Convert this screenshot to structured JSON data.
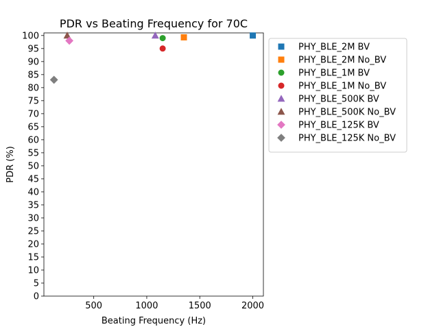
{
  "chart_data": {
    "type": "scatter",
    "title": "PDR vs Beating Frequency for 70C",
    "xlabel": "Beating Frequency (Hz)",
    "ylabel": "PDR (%)",
    "xlim": [
      30,
      2100
    ],
    "ylim": [
      0,
      101
    ],
    "xticks": [
      500,
      1000,
      1500,
      2000
    ],
    "yticks": [
      0,
      5,
      10,
      15,
      20,
      25,
      30,
      35,
      40,
      45,
      50,
      55,
      60,
      65,
      70,
      75,
      80,
      85,
      90,
      95,
      100
    ],
    "grid": false,
    "legend_position": "outside-right",
    "series": [
      {
        "name": "PHY_BLE_2M BV",
        "marker": "square",
        "color": "#1f77b4",
        "points": [
          {
            "x": 2000,
            "y": 100
          }
        ]
      },
      {
        "name": "PHY_BLE_2M No_BV",
        "marker": "square",
        "color": "#ff7f0e",
        "points": [
          {
            "x": 1350,
            "y": 99.3
          }
        ]
      },
      {
        "name": "PHY_BLE_1M BV",
        "marker": "circle",
        "color": "#2ca02c",
        "points": [
          {
            "x": 1150,
            "y": 99
          }
        ]
      },
      {
        "name": "PHY_BLE_1M No_BV",
        "marker": "circle",
        "color": "#d62728",
        "points": [
          {
            "x": 1150,
            "y": 95
          }
        ]
      },
      {
        "name": "PHY_BLE_500K BV",
        "marker": "triangle",
        "color": "#9467bd",
        "points": [
          {
            "x": 1080,
            "y": 100
          }
        ]
      },
      {
        "name": "PHY_BLE_500K No_BV",
        "marker": "triangle",
        "color": "#8c564b",
        "points": [
          {
            "x": 250,
            "y": 100
          }
        ]
      },
      {
        "name": "PHY_BLE_125K BV",
        "marker": "diamond",
        "color": "#e377c2",
        "points": [
          {
            "x": 270,
            "y": 98
          }
        ]
      },
      {
        "name": "PHY_BLE_125K No_BV",
        "marker": "diamond",
        "color": "#7f7f7f",
        "points": [
          {
            "x": 125,
            "y": 83
          }
        ]
      }
    ]
  }
}
